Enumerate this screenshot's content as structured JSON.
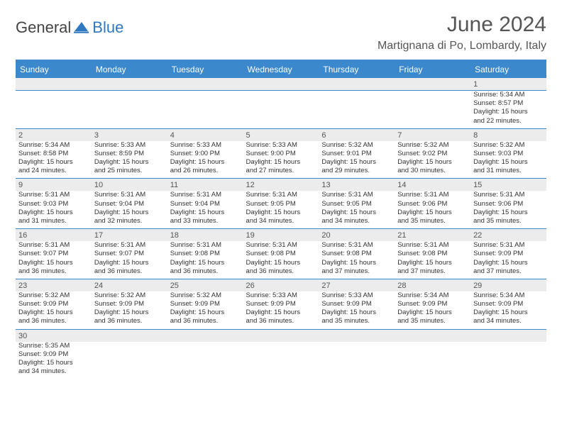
{
  "brand": {
    "part1": "General",
    "part2": "Blue"
  },
  "title": {
    "month": "June 2024",
    "location": "Martignana di Po, Lombardy, Italy"
  },
  "colors": {
    "accent": "#3b88cc",
    "text": "#333333",
    "muted": "#555555",
    "row_alt": "#ececec"
  },
  "typography": {
    "title_pt": 30,
    "location_pt": 16,
    "header_pt": 12,
    "daynum_pt": 11,
    "cell_pt": 9.5
  },
  "layout": {
    "cols": 7,
    "cell_lines": 4,
    "first_blank_cells": 6
  },
  "weekdays": [
    "Sunday",
    "Monday",
    "Tuesday",
    "Wednesday",
    "Thursday",
    "Friday",
    "Saturday"
  ],
  "labels": {
    "sunrise": "Sunrise:",
    "sunset": "Sunset:",
    "daylight": "Daylight:",
    "hours": "hours",
    "and_minutes": "minutes."
  },
  "days": [
    {
      "n": 1,
      "sr": "5:34 AM",
      "ss": "8:57 PM",
      "dh": 15,
      "dm": 22
    },
    {
      "n": 2,
      "sr": "5:34 AM",
      "ss": "8:58 PM",
      "dh": 15,
      "dm": 24
    },
    {
      "n": 3,
      "sr": "5:33 AM",
      "ss": "8:59 PM",
      "dh": 15,
      "dm": 25
    },
    {
      "n": 4,
      "sr": "5:33 AM",
      "ss": "9:00 PM",
      "dh": 15,
      "dm": 26
    },
    {
      "n": 5,
      "sr": "5:33 AM",
      "ss": "9:00 PM",
      "dh": 15,
      "dm": 27
    },
    {
      "n": 6,
      "sr": "5:32 AM",
      "ss": "9:01 PM",
      "dh": 15,
      "dm": 29
    },
    {
      "n": 7,
      "sr": "5:32 AM",
      "ss": "9:02 PM",
      "dh": 15,
      "dm": 30
    },
    {
      "n": 8,
      "sr": "5:32 AM",
      "ss": "9:03 PM",
      "dh": 15,
      "dm": 31
    },
    {
      "n": 9,
      "sr": "5:31 AM",
      "ss": "9:03 PM",
      "dh": 15,
      "dm": 31
    },
    {
      "n": 10,
      "sr": "5:31 AM",
      "ss": "9:04 PM",
      "dh": 15,
      "dm": 32
    },
    {
      "n": 11,
      "sr": "5:31 AM",
      "ss": "9:04 PM",
      "dh": 15,
      "dm": 33
    },
    {
      "n": 12,
      "sr": "5:31 AM",
      "ss": "9:05 PM",
      "dh": 15,
      "dm": 34
    },
    {
      "n": 13,
      "sr": "5:31 AM",
      "ss": "9:05 PM",
      "dh": 15,
      "dm": 34
    },
    {
      "n": 14,
      "sr": "5:31 AM",
      "ss": "9:06 PM",
      "dh": 15,
      "dm": 35
    },
    {
      "n": 15,
      "sr": "5:31 AM",
      "ss": "9:06 PM",
      "dh": 15,
      "dm": 35
    },
    {
      "n": 16,
      "sr": "5:31 AM",
      "ss": "9:07 PM",
      "dh": 15,
      "dm": 36
    },
    {
      "n": 17,
      "sr": "5:31 AM",
      "ss": "9:07 PM",
      "dh": 15,
      "dm": 36
    },
    {
      "n": 18,
      "sr": "5:31 AM",
      "ss": "9:08 PM",
      "dh": 15,
      "dm": 36
    },
    {
      "n": 19,
      "sr": "5:31 AM",
      "ss": "9:08 PM",
      "dh": 15,
      "dm": 36
    },
    {
      "n": 20,
      "sr": "5:31 AM",
      "ss": "9:08 PM",
      "dh": 15,
      "dm": 37
    },
    {
      "n": 21,
      "sr": "5:31 AM",
      "ss": "9:08 PM",
      "dh": 15,
      "dm": 37
    },
    {
      "n": 22,
      "sr": "5:31 AM",
      "ss": "9:09 PM",
      "dh": 15,
      "dm": 37
    },
    {
      "n": 23,
      "sr": "5:32 AM",
      "ss": "9:09 PM",
      "dh": 15,
      "dm": 36
    },
    {
      "n": 24,
      "sr": "5:32 AM",
      "ss": "9:09 PM",
      "dh": 15,
      "dm": 36
    },
    {
      "n": 25,
      "sr": "5:32 AM",
      "ss": "9:09 PM",
      "dh": 15,
      "dm": 36
    },
    {
      "n": 26,
      "sr": "5:33 AM",
      "ss": "9:09 PM",
      "dh": 15,
      "dm": 36
    },
    {
      "n": 27,
      "sr": "5:33 AM",
      "ss": "9:09 PM",
      "dh": 15,
      "dm": 35
    },
    {
      "n": 28,
      "sr": "5:34 AM",
      "ss": "9:09 PM",
      "dh": 15,
      "dm": 35
    },
    {
      "n": 29,
      "sr": "5:34 AM",
      "ss": "9:09 PM",
      "dh": 15,
      "dm": 34
    },
    {
      "n": 30,
      "sr": "5:35 AM",
      "ss": "9:09 PM",
      "dh": 15,
      "dm": 34
    }
  ]
}
